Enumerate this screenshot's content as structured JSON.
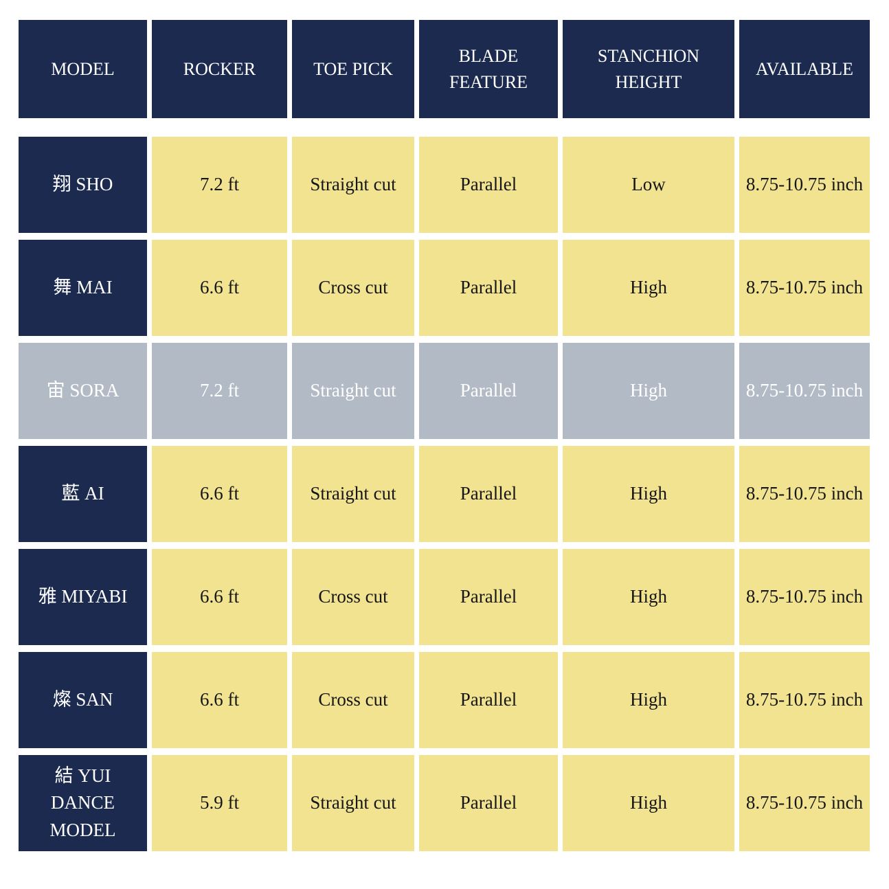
{
  "colors": {
    "header_bg": "#1b2a4e",
    "cell_bg": "#f2e391",
    "highlight_bg": "#b2bbc5",
    "header_text": "#ffffff",
    "cell_text": "#161616",
    "highlight_text": "#ffffff"
  },
  "table": {
    "columns": [
      {
        "label": "MODEL"
      },
      {
        "label": "ROCKER"
      },
      {
        "label": "TOE PICK"
      },
      {
        "label": "BLADE FEATURE"
      },
      {
        "label": "STANCHION\nHEIGHT"
      },
      {
        "label": "AVAILABLE"
      }
    ],
    "rows": [
      {
        "model": "翔 SHO",
        "rocker": "7.2 ft",
        "toe_pick": "Straight cut",
        "blade_feature": "Parallel",
        "stanchion_height": "Low",
        "available": "8.75-10.75 inch",
        "highlighted": false
      },
      {
        "model": "舞 MAI",
        "rocker": "6.6 ft",
        "toe_pick": "Cross cut",
        "blade_feature": "Parallel",
        "stanchion_height": "High",
        "available": "8.75-10.75 inch",
        "highlighted": false
      },
      {
        "model": "宙 SORA",
        "rocker": "7.2 ft",
        "toe_pick": "Straight cut",
        "blade_feature": "Parallel",
        "stanchion_height": "High",
        "available": "8.75-10.75 inch",
        "highlighted": true
      },
      {
        "model": "藍 AI",
        "rocker": "6.6 ft",
        "toe_pick": "Straight cut",
        "blade_feature": "Parallel",
        "stanchion_height": "High",
        "available": "8.75-10.75 inch",
        "highlighted": false
      },
      {
        "model": "雅 MIYABI",
        "rocker": "6.6 ft",
        "toe_pick": "Cross cut",
        "blade_feature": "Parallel",
        "stanchion_height": "High",
        "available": "8.75-10.75 inch",
        "highlighted": false
      },
      {
        "model": "燦 SAN",
        "rocker": "6.6 ft",
        "toe_pick": "Cross cut",
        "blade_feature": "Parallel",
        "stanchion_height": "High",
        "available": "8.75-10.75 inch",
        "highlighted": false
      },
      {
        "model": "結 YUI\nDANCE MODEL",
        "rocker": "5.9 ft",
        "toe_pick": "Straight cut",
        "blade_feature": "Parallel",
        "stanchion_height": "High",
        "available": "8.75-10.75 inch",
        "highlighted": false
      }
    ]
  },
  "chart_data": {
    "type": "table",
    "columns": [
      "MODEL",
      "ROCKER",
      "TOE PICK",
      "BLADE FEATURE",
      "STANCHION HEIGHT",
      "AVAILABLE"
    ],
    "rows": [
      [
        "翔 SHO",
        "7.2 ft",
        "Straight cut",
        "Parallel",
        "Low",
        "8.75-10.75 inch"
      ],
      [
        "舞 MAI",
        "6.6 ft",
        "Cross cut",
        "Parallel",
        "High",
        "8.75-10.75 inch"
      ],
      [
        "宙 SORA",
        "7.2 ft",
        "Straight cut",
        "Parallel",
        "High",
        "8.75-10.75 inch"
      ],
      [
        "藍 AI",
        "6.6 ft",
        "Straight cut",
        "Parallel",
        "High",
        "8.75-10.75 inch"
      ],
      [
        "雅 MIYABI",
        "6.6 ft",
        "Cross cut",
        "Parallel",
        "High",
        "8.75-10.75 inch"
      ],
      [
        "燦 SAN",
        "6.6 ft",
        "Cross cut",
        "Parallel",
        "High",
        "8.75-10.75 inch"
      ],
      [
        "結 YUI DANCE MODEL",
        "5.9 ft",
        "Straight cut",
        "Parallel",
        "High",
        "8.75-10.75 inch"
      ]
    ],
    "highlighted_row": "宙 SORA",
    "legend_position": "none",
    "grid": false
  }
}
